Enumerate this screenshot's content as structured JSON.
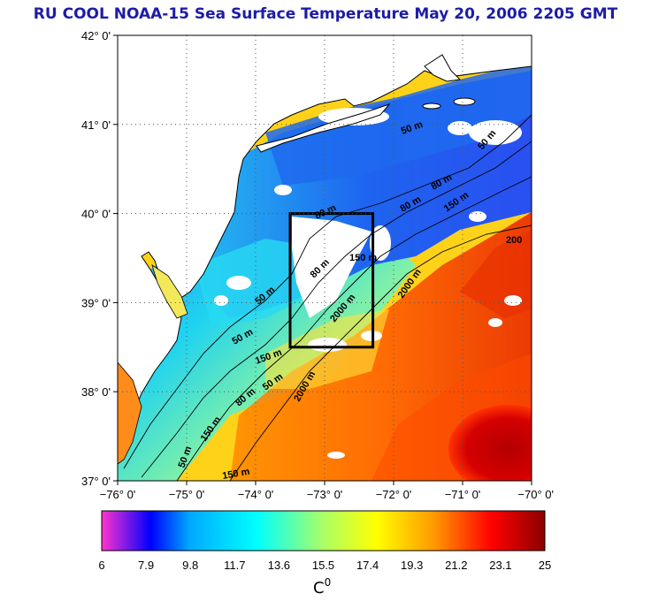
{
  "title": "RU COOL  NOAA-15 Sea Surface Temperature May 20, 2006 2205 GMT",
  "map": {
    "lat_ticks": [
      "42° 0'",
      "41° 0'",
      "40° 0'",
      "39° 0'",
      "38° 0'",
      "37° 0'"
    ],
    "lon_ticks": [
      "−76° 0'",
      "−75° 0'",
      "−74° 0'",
      "−73° 0'",
      "−72° 0'",
      "−71° 0'",
      "−70° 0'"
    ],
    "lat_range": [
      37,
      42
    ],
    "lon_range": [
      -76,
      -70
    ],
    "grid": "dotted",
    "study_box": {
      "lon": [
        -73.5,
        -72.3
      ],
      "lat": [
        38.5,
        40.0
      ]
    },
    "contour_labels": [
      "50 m",
      "50 m",
      "50 m",
      "50 m",
      "50 m",
      "80 m",
      "80 m",
      "80 m",
      "80 m",
      "80 m",
      "150 m",
      "150 m",
      "150 m",
      "150 m",
      "2000 m",
      "2000 m",
      "2000 m",
      "200",
      "50 m",
      "150 m"
    ]
  },
  "colorbar": {
    "ticks": [
      "6",
      "7.9",
      "9.8",
      "11.7",
      "13.6",
      "15.5",
      "17.4",
      "19.3",
      "21.2",
      "23.1",
      "25"
    ],
    "min": 6,
    "max": 25,
    "unit": "C",
    "unit_sup": "0",
    "colors": [
      "#ff33cc",
      "#0000ff",
      "#00aaff",
      "#00ffff",
      "#aaff66",
      "#ffff00",
      "#ff9900",
      "#ff0000",
      "#8b0000"
    ]
  },
  "colors": {
    "title": "#1c1ca8",
    "land": "#ffffff",
    "cloud": "#ffffff",
    "cold_shelf": "#2a6cf0",
    "warm_slope": "#ff8c1a",
    "gulf_stream": "#c80000"
  }
}
